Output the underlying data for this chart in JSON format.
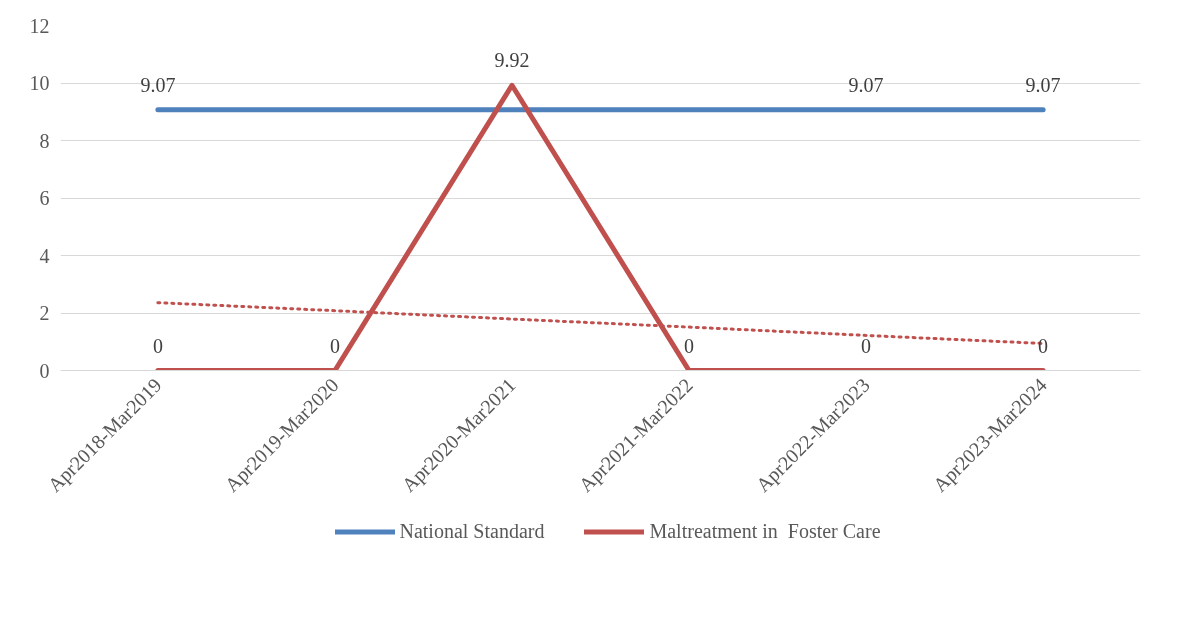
{
  "chart_data": {
    "type": "line",
    "categories": [
      "Apr2018-Mar2019",
      "Apr2019-Mar2020",
      "Apr2020-Mar2021",
      "Apr2021-Mar2022",
      "Apr2022-Mar2023",
      "Apr2023-Mar2024"
    ],
    "series": [
      {
        "name": "National Standard",
        "color": "#4f81bd",
        "values": [
          9.07,
          9.07,
          9.07,
          9.07,
          9.07,
          9.07
        ],
        "value_labels": [
          "9.07",
          null,
          null,
          null,
          "9.07",
          "9.07"
        ]
      },
      {
        "name": "Maltreatment in  Foster Care",
        "color": "#c0504d",
        "values": [
          0,
          0,
          9.92,
          0,
          0,
          0
        ],
        "value_labels": [
          "0",
          "0",
          "9.92",
          "0",
          "0",
          "0"
        ]
      },
      {
        "color": "#c0504d",
        "values": [
          2.36,
          2.08,
          1.79,
          1.51,
          1.22,
          0.94
        ],
        "line_style": "dotted"
      }
    ],
    "ylim": [
      0,
      12
    ],
    "yticks": [
      0,
      2,
      4,
      6,
      8,
      10,
      12
    ],
    "grid": "y",
    "legend": "bottom",
    "marker": "none"
  }
}
